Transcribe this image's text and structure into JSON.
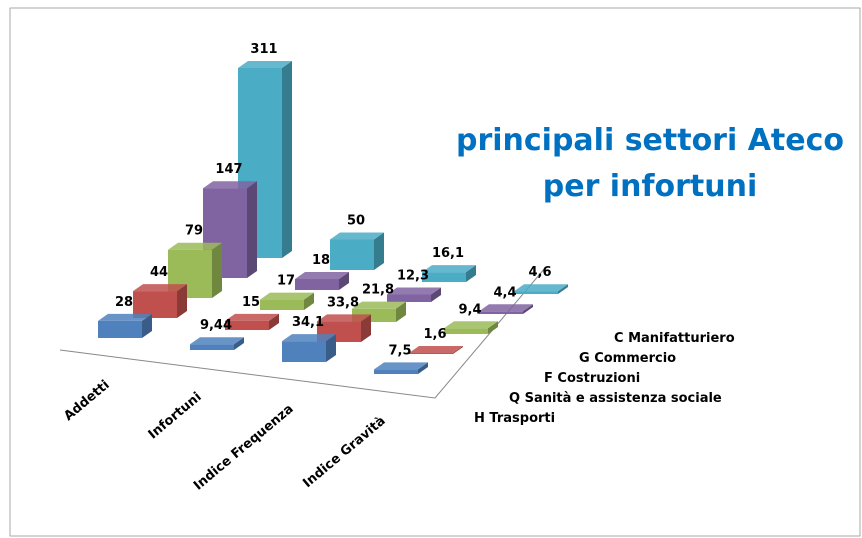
{
  "chart_data": {
    "type": "bar3d",
    "title": "principali settori Ateco per infortuni",
    "categories": [
      "Addetti",
      "Infortuni",
      "Indice Frequenza",
      "Indice Gravità"
    ],
    "series": [
      {
        "name": "C Manifatturiero",
        "color": "#4bacc6",
        "values": [
          311,
          50,
          16.1,
          4.6
        ],
        "value_labels": [
          "311",
          "50",
          "16,1",
          "4,6"
        ]
      },
      {
        "name": "G Commercio",
        "color": "#8064a2",
        "values": [
          147,
          18,
          12.3,
          4.4
        ],
        "value_labels": [
          "147",
          "18",
          "12,3",
          "4,4"
        ]
      },
      {
        "name": "F Costruzioni",
        "color": "#9bbb59",
        "values": [
          79,
          17,
          21.8,
          9.4
        ],
        "value_labels": [
          "79",
          "17",
          "21,8",
          "9,4"
        ]
      },
      {
        "name": "Q Sanità e assistenza sociale",
        "color": "#c0504d",
        "values": [
          44,
          15,
          33.8,
          1.6
        ],
        "value_labels": [
          "44",
          "15",
          "33,8",
          "1,6"
        ]
      },
      {
        "name": "H Trasporti",
        "color": "#4f81bd",
        "values": [
          28,
          9.44,
          34.1,
          7.5
        ],
        "value_labels": [
          "28",
          "9,44",
          "34,1",
          "7,5"
        ]
      }
    ]
  }
}
